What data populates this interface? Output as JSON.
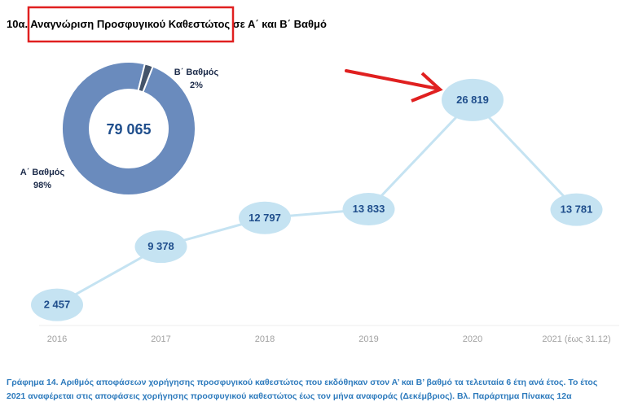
{
  "chart_data": [
    {
      "type": "line",
      "title": "10α. Αναγνώριση Προσφυγικού Καθεστώτος σε Α΄ και Β΄ Βαθμό",
      "categories": [
        "2016",
        "2017",
        "2018",
        "2019",
        "2020",
        "2021 (έως 31.12)"
      ],
      "values": [
        2457,
        9378,
        12797,
        13833,
        26819,
        13781
      ],
      "value_labels": [
        "2 457",
        "9 378",
        "12 797",
        "13 833",
        "26 819",
        "13 781"
      ],
      "ylim": [
        0,
        30000
      ],
      "grid": false,
      "colors": {
        "line": "#c5e3f2",
        "marker": "#c5e3f2",
        "label": "#1f4e8c"
      }
    },
    {
      "type": "pie",
      "total_label": "79 065",
      "slices": [
        {
          "name": "Α΄ Βαθμός",
          "value": 98,
          "label": "98%",
          "color": "#6a8bbd"
        },
        {
          "name": "Β΄ Βαθμός",
          "value": 2,
          "label": "2%",
          "color": "#44546a"
        }
      ]
    }
  ],
  "annotations": {
    "highlight_box_color": "#e02020",
    "arrow_color": "#e02020"
  },
  "caption": {
    "line1": "Γράφημα 14. Αριθμός αποφάσεων χορήγησης προσφυγικού καθεστώτος που εκδόθηκαν στον Α’ και Β’ βαθμό τα τελευταία 6 έτη ανά έτος. Το έτος",
    "line2": "2021 αναφέρεται στις αποφάσεις χορήγησης προσφυγικού καθεστώτος έως τον μήνα αναφοράς (Δεκέμβριος). Βλ. Παράρτημα Πίνακας 12α"
  }
}
